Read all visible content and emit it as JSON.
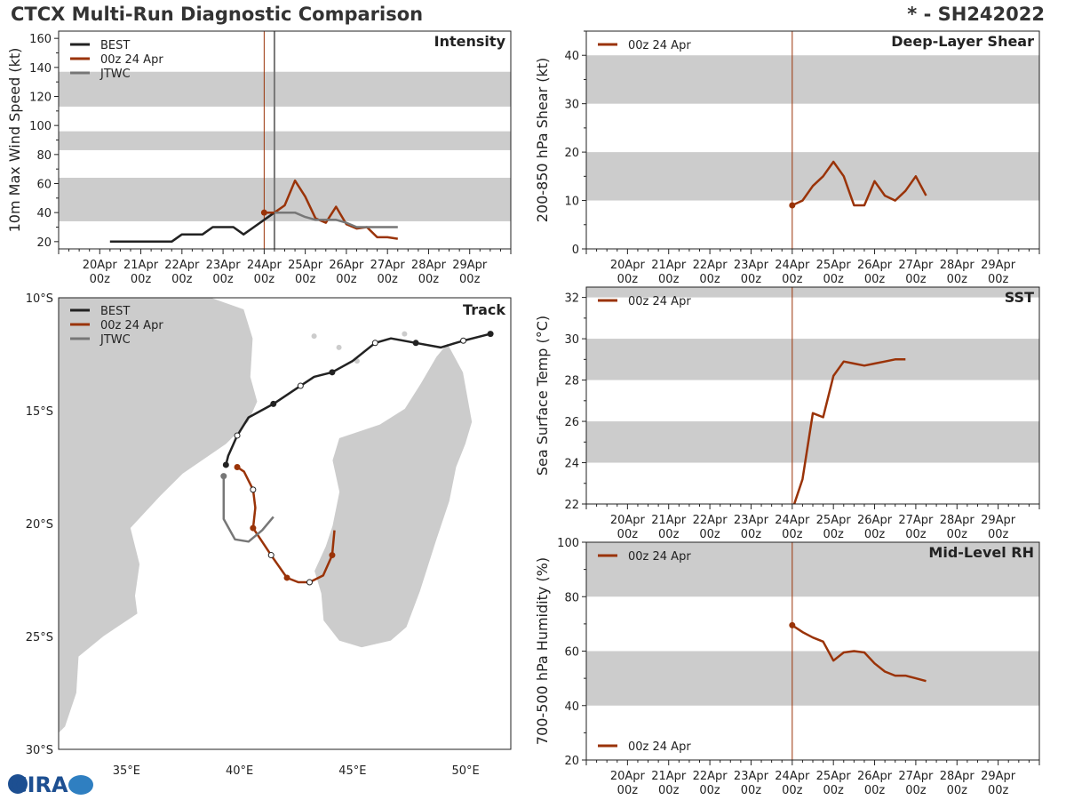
{
  "header": {
    "title": "CTCX Multi-Run Diagnostic Comparison",
    "storm_id": "* - SH242022"
  },
  "colors": {
    "best": "#222222",
    "run": "#9a3308",
    "jtwc": "#777777",
    "band": "#cccccc",
    "land": "#cccccc",
    "coast": "#ffffff"
  },
  "time_axis": {
    "ticks": [
      {
        "day": "20Apr",
        "hour": "00z"
      },
      {
        "day": "21Apr",
        "hour": "00z"
      },
      {
        "day": "22Apr",
        "hour": "00z"
      },
      {
        "day": "23Apr",
        "hour": "00z"
      },
      {
        "day": "24Apr",
        "hour": "00z"
      },
      {
        "day": "25Apr",
        "hour": "00z"
      },
      {
        "day": "26Apr",
        "hour": "00z"
      },
      {
        "day": "27Apr",
        "hour": "00z"
      },
      {
        "day": "28Apr",
        "hour": "00z"
      },
      {
        "day": "29Apr",
        "hour": "00z"
      }
    ],
    "note": "x values are hours since 20Apr 00z",
    "range": [
      -24,
      240
    ],
    "init_hour": 96
  },
  "logo": {
    "text": "CIRA"
  },
  "chart_data": [
    {
      "id": "intensity",
      "type": "line",
      "title": "Intensity",
      "ylabel": "10m Max Wind Speed (kt)",
      "ylim": [
        15,
        165
      ],
      "yticks": [
        20,
        40,
        60,
        80,
        100,
        120,
        140,
        160
      ],
      "bands": [
        [
          34,
          64
        ],
        [
          83,
          96
        ],
        [
          113,
          137
        ]
      ],
      "markers": [
        {
          "x": 96,
          "color": "run"
        },
        {
          "x": 102,
          "color": "jtwc"
        }
      ],
      "legend": [
        "BEST",
        "00z 24 Apr",
        "JTWC"
      ],
      "series": [
        {
          "name": "BEST",
          "color": "best",
          "x": [
            6,
            12,
            18,
            24,
            30,
            36,
            42,
            48,
            54,
            60,
            66,
            72,
            78,
            84,
            90,
            96,
            102
          ],
          "y": [
            20,
            20,
            20,
            20,
            20,
            20,
            20,
            25,
            25,
            25,
            30,
            30,
            30,
            25,
            30,
            35,
            40
          ]
        },
        {
          "name": "00z 24 Apr",
          "color": "run",
          "x": [
            96,
            102,
            108,
            114,
            120,
            126,
            132,
            138,
            144,
            150,
            156,
            162,
            168,
            174
          ],
          "y": [
            40,
            40,
            45,
            62,
            51,
            36,
            33,
            44,
            32,
            29,
            30,
            23,
            23,
            22
          ],
          "start_marker": true
        },
        {
          "name": "JTWC",
          "color": "jtwc",
          "x": [
            102,
            108,
            114,
            120,
            126,
            132,
            138,
            144,
            150,
            156,
            162,
            168,
            174
          ],
          "y": [
            40,
            40,
            40,
            37,
            35,
            35,
            35,
            33,
            30,
            30,
            30,
            30,
            30
          ]
        }
      ]
    },
    {
      "id": "shear",
      "type": "line",
      "title": "Deep-Layer Shear",
      "ylabel": "200-850 hPa Shear (kt)",
      "ylim": [
        0,
        45
      ],
      "yticks": [
        0,
        10,
        20,
        30,
        40
      ],
      "bands": [
        [
          10,
          20
        ],
        [
          30,
          40
        ]
      ],
      "markers": [
        {
          "x": 96,
          "color": "run"
        }
      ],
      "legend": [
        "00z 24 Apr"
      ],
      "series": [
        {
          "name": "00z 24 Apr",
          "color": "run",
          "x": [
            96,
            102,
            108,
            114,
            120,
            126,
            132,
            138,
            144,
            150,
            156,
            162,
            168,
            174
          ],
          "y": [
            9,
            10,
            13,
            15,
            18,
            15,
            9,
            9,
            14,
            11,
            10,
            12,
            15,
            11
          ],
          "start_marker": true
        }
      ]
    },
    {
      "id": "sst",
      "type": "line",
      "title": "SST",
      "ylabel": "Sea Surface Temp (°C)",
      "ylim": [
        22,
        32.5
      ],
      "yticks": [
        22,
        24,
        26,
        28,
        30,
        32
      ],
      "bands": [
        [
          24,
          26
        ],
        [
          28,
          30
        ],
        [
          32,
          34
        ]
      ],
      "markers": [
        {
          "x": 96,
          "color": "run"
        }
      ],
      "legend": [
        "00z 24 Apr"
      ],
      "series": [
        {
          "name": "00z 24 Apr",
          "color": "run",
          "x": [
            96,
            102,
            108,
            114,
            120,
            126,
            132,
            138,
            144,
            150,
            156,
            162
          ],
          "y": [
            21.7,
            23.2,
            26.4,
            26.2,
            28.2,
            28.9,
            28.8,
            28.7,
            28.8,
            28.9,
            29.0,
            29.0
          ]
        }
      ]
    },
    {
      "id": "rh",
      "type": "line",
      "title": "Mid-Level RH",
      "ylabel": "700-500 hPa Humidity (%)",
      "ylim": [
        20,
        100
      ],
      "yticks": [
        20,
        40,
        60,
        80,
        100
      ],
      "bands": [
        [
          40,
          60
        ],
        [
          80,
          100
        ]
      ],
      "markers": [
        {
          "x": 96,
          "color": "run"
        }
      ],
      "legend": [
        "00z 24 Apr"
      ],
      "series": [
        {
          "name": "00z 24 Apr",
          "color": "run",
          "x": [
            96,
            102,
            108,
            114,
            120,
            126,
            132,
            138,
            144,
            150,
            156,
            162,
            168,
            174
          ],
          "y": [
            69.5,
            67,
            65,
            63.5,
            56.5,
            59.5,
            60,
            59.5,
            55.5,
            52.5,
            51,
            51,
            50,
            49
          ],
          "start_marker": true
        }
      ]
    },
    {
      "id": "track",
      "type": "scatter",
      "title": "Track",
      "legend": [
        "BEST",
        "00z 24 Apr",
        "JTWC"
      ],
      "xlim": [
        32,
        52
      ],
      "ylim": [
        -30,
        -10
      ],
      "xticks": [
        {
          "v": 35,
          "label": "35°E"
        },
        {
          "v": 40,
          "label": "40°E"
        },
        {
          "v": 45,
          "label": "45°E"
        },
        {
          "v": 50,
          "label": "50°E"
        }
      ],
      "yticks": [
        {
          "v": -10,
          "label": "10°S"
        },
        {
          "v": -15,
          "label": "15°S"
        },
        {
          "v": -20,
          "label": "20°S"
        },
        {
          "v": -25,
          "label": "25°S"
        },
        {
          "v": -30,
          "label": "30°S"
        }
      ],
      "series": [
        {
          "name": "BEST",
          "color": "best",
          "points": [
            [
              51.1,
              -11.6
            ],
            [
              49.9,
              -11.9
            ],
            [
              48.9,
              -12.2
            ],
            [
              47.8,
              -12.0
            ],
            [
              46.7,
              -11.8
            ],
            [
              46.0,
              -12.0
            ],
            [
              45.0,
              -12.8
            ],
            [
              44.1,
              -13.3
            ],
            [
              43.3,
              -13.5
            ],
            [
              42.7,
              -13.9
            ],
            [
              41.5,
              -14.7
            ],
            [
              40.4,
              -15.3
            ],
            [
              39.9,
              -16.1
            ],
            [
              39.5,
              -17.0
            ],
            [
              39.4,
              -17.4
            ]
          ],
          "filled": [
            true,
            false,
            false,
            true,
            false,
            false,
            false,
            true,
            false,
            false,
            true,
            false,
            false,
            false,
            true
          ]
        },
        {
          "name": "00z 24 Apr",
          "color": "run",
          "points": [
            [
              39.9,
              -17.5
            ],
            [
              40.2,
              -17.7
            ],
            [
              40.6,
              -18.5
            ],
            [
              40.7,
              -19.3
            ],
            [
              40.6,
              -20.2
            ],
            [
              41.4,
              -21.4
            ],
            [
              42.1,
              -22.4
            ],
            [
              42.6,
              -22.6
            ],
            [
              43.1,
              -22.6
            ],
            [
              43.7,
              -22.3
            ],
            [
              44.1,
              -21.4
            ],
            [
              44.2,
              -20.3
            ]
          ],
          "filled": [
            true,
            false,
            false,
            false,
            true,
            false,
            true,
            false,
            false,
            false,
            true,
            false
          ],
          "hollow_at": [
            2,
            5,
            8
          ]
        },
        {
          "name": "JTWC",
          "color": "jtwc",
          "points": [
            [
              39.3,
              -17.9
            ],
            [
              39.3,
              -18.6
            ],
            [
              39.3,
              -19.8
            ],
            [
              39.8,
              -20.7
            ],
            [
              40.4,
              -20.8
            ],
            [
              41.0,
              -20.3
            ],
            [
              41.5,
              -19.7
            ]
          ],
          "filled": [
            true,
            false,
            false,
            false,
            false,
            false,
            false
          ]
        }
      ]
    }
  ]
}
